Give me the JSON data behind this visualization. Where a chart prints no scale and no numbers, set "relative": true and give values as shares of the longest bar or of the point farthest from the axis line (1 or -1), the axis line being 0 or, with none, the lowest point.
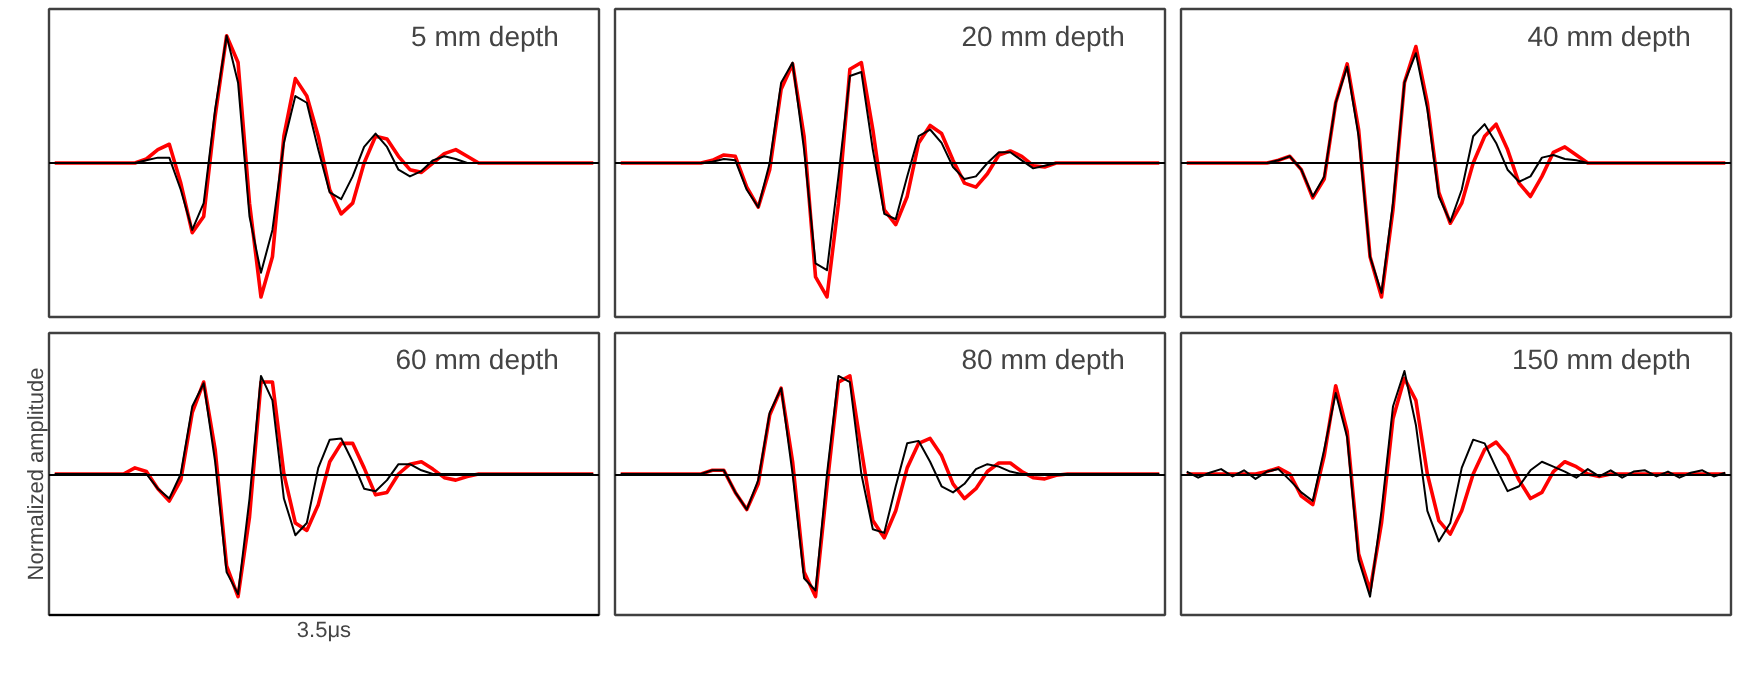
{
  "chart_data": [
    {
      "type": "line",
      "title": "5 mm depth",
      "relative": true,
      "categories": [
        null,
        null,
        null,
        null,
        null,
        null,
        null,
        null,
        null,
        null,
        null,
        null,
        null,
        null,
        null,
        null,
        null,
        null,
        null,
        null,
        null,
        null,
        null,
        null,
        null,
        null,
        null,
        null,
        null,
        null,
        null,
        null,
        null,
        null,
        null,
        null,
        null,
        null,
        null,
        null,
        null,
        null,
        null,
        null,
        null,
        null,
        null,
        null
      ],
      "series": [
        {
          "color": "#000000",
          "values": [
            0,
            0,
            0,
            0,
            0,
            0,
            0,
            0,
            0.02,
            0.04,
            0.04,
            -0.2,
            -0.5,
            -0.3,
            0.4,
            0.95,
            0.6,
            -0.4,
            -0.82,
            -0.5,
            0.15,
            0.5,
            0.45,
            0.1,
            -0.22,
            -0.27,
            -0.1,
            0.12,
            0.22,
            0.12,
            -0.05,
            -0.1,
            -0.06,
            0.02,
            0.05,
            0.03,
            0,
            0,
            0,
            0,
            0,
            0,
            0,
            0,
            0,
            0,
            0,
            0
          ]
        },
        {
          "color": "#ff0000",
          "values": [
            0,
            0,
            0,
            0,
            0,
            0,
            0,
            0,
            0.03,
            0.1,
            0.14,
            -0.15,
            -0.52,
            -0.4,
            0.35,
            0.95,
            0.75,
            -0.3,
            -1.0,
            -0.7,
            0.2,
            0.63,
            0.5,
            0.2,
            -0.2,
            -0.38,
            -0.3,
            0.0,
            0.2,
            0.18,
            0.05,
            -0.05,
            -0.07,
            0.0,
            0.07,
            0.1,
            0.05,
            0,
            0,
            0,
            0,
            0,
            0,
            0,
            0,
            0,
            0,
            0
          ]
        }
      ]
    },
    {
      "type": "line",
      "title": "20 mm depth",
      "relative": true,
      "categories": [
        null,
        null,
        null,
        null,
        null,
        null,
        null,
        null,
        null,
        null,
        null,
        null,
        null,
        null,
        null,
        null,
        null,
        null,
        null,
        null,
        null,
        null,
        null,
        null,
        null,
        null,
        null,
        null,
        null,
        null,
        null,
        null,
        null,
        null,
        null,
        null,
        null,
        null,
        null,
        null,
        null,
        null,
        null,
        null,
        null,
        null,
        null,
        null
      ],
      "series": [
        {
          "color": "#000000",
          "values": [
            0,
            0,
            0,
            0,
            0,
            0,
            0,
            0,
            0.01,
            0.03,
            0.02,
            -0.2,
            -0.33,
            0.0,
            0.6,
            0.75,
            0.1,
            -0.75,
            -0.8,
            -0.1,
            0.65,
            0.68,
            0.1,
            -0.38,
            -0.42,
            -0.1,
            0.2,
            0.25,
            0.15,
            -0.03,
            -0.12,
            -0.1,
            0.0,
            0.08,
            0.08,
            0.02,
            -0.04,
            -0.02,
            0,
            0,
            0,
            0,
            0,
            0,
            0,
            0,
            0,
            0
          ]
        },
        {
          "color": "#ff0000",
          "values": [
            0,
            0,
            0,
            0,
            0,
            0,
            0,
            0,
            0.02,
            0.06,
            0.05,
            -0.18,
            -0.33,
            -0.05,
            0.55,
            0.74,
            0.2,
            -0.85,
            -1.0,
            -0.3,
            0.7,
            0.75,
            0.25,
            -0.35,
            -0.46,
            -0.25,
            0.15,
            0.28,
            0.22,
            0.02,
            -0.15,
            -0.18,
            -0.08,
            0.06,
            0.09,
            0.05,
            -0.02,
            -0.03,
            0,
            0,
            0,
            0,
            0,
            0,
            0,
            0,
            0,
            0
          ]
        }
      ]
    },
    {
      "type": "line",
      "title": "40 mm depth",
      "relative": true,
      "categories": [
        null,
        null,
        null,
        null,
        null,
        null,
        null,
        null,
        null,
        null,
        null,
        null,
        null,
        null,
        null,
        null,
        null,
        null,
        null,
        null,
        null,
        null,
        null,
        null,
        null,
        null,
        null,
        null,
        null,
        null,
        null,
        null,
        null,
        null,
        null,
        null,
        null,
        null,
        null,
        null,
        null,
        null,
        null,
        null,
        null,
        null,
        null,
        null
      ],
      "series": [
        {
          "color": "#000000",
          "values": [
            0,
            0,
            0,
            0,
            0,
            0,
            0,
            0,
            0.02,
            0.05,
            -0.05,
            -0.25,
            -0.1,
            0.45,
            0.72,
            0.2,
            -0.7,
            -0.97,
            -0.3,
            0.6,
            0.82,
            0.4,
            -0.25,
            -0.44,
            -0.2,
            0.2,
            0.29,
            0.15,
            -0.05,
            -0.14,
            -0.1,
            0.04,
            0.06,
            0.03,
            0.02,
            0,
            0,
            0,
            0,
            0,
            0,
            0,
            0,
            0,
            0,
            0,
            0,
            0
          ]
        },
        {
          "color": "#ff0000",
          "values": [
            0,
            0,
            0,
            0,
            0,
            0,
            0,
            0,
            0.02,
            0.05,
            -0.05,
            -0.26,
            -0.12,
            0.45,
            0.74,
            0.25,
            -0.7,
            -1.0,
            -0.35,
            0.6,
            0.87,
            0.45,
            -0.22,
            -0.45,
            -0.3,
            0.0,
            0.2,
            0.29,
            0.1,
            -0.15,
            -0.25,
            -0.1,
            0.08,
            0.12,
            0.06,
            0.0,
            0,
            0,
            0,
            0,
            0,
            0,
            0,
            0,
            0,
            0,
            0,
            0
          ]
        }
      ]
    },
    {
      "type": "line",
      "title": "60 mm depth",
      "relative": true,
      "ylabel": "Normalized amplitude",
      "annotations": [
        "3.5μs"
      ],
      "categories": [
        null,
        null,
        null,
        null,
        null,
        null,
        null,
        null,
        null,
        null,
        null,
        null,
        null,
        null,
        null,
        null,
        null,
        null,
        null,
        null,
        null,
        null,
        null,
        null,
        null,
        null,
        null,
        null,
        null,
        null,
        null,
        null,
        null,
        null,
        null,
        null,
        null,
        null,
        null,
        null,
        null,
        null,
        null,
        null,
        null,
        null,
        null,
        null
      ],
      "series": [
        {
          "color": "#000000",
          "values": [
            0,
            0,
            0,
            0,
            0,
            0,
            0,
            0,
            0.0,
            -0.12,
            -0.2,
            0.0,
            0.55,
            0.74,
            0.1,
            -0.8,
            -0.98,
            -0.2,
            0.8,
            0.6,
            -0.2,
            -0.5,
            -0.4,
            0.05,
            0.28,
            0.29,
            0.1,
            -0.12,
            -0.14,
            -0.05,
            0.08,
            0.08,
            0.03,
            0.0,
            0,
            0,
            0,
            0,
            0,
            0,
            0,
            0,
            0,
            0,
            0,
            0,
            0,
            0
          ]
        },
        {
          "color": "#ff0000",
          "values": [
            0,
            0,
            0,
            0,
            0,
            0,
            0,
            0.05,
            0.02,
            -0.12,
            -0.22,
            -0.05,
            0.5,
            0.75,
            0.2,
            -0.75,
            -1.0,
            -0.35,
            0.75,
            0.75,
            0.0,
            -0.4,
            -0.46,
            -0.25,
            0.1,
            0.25,
            0.25,
            0.05,
            -0.17,
            -0.15,
            0.0,
            0.08,
            0.1,
            0.04,
            -0.03,
            -0.05,
            -0.02,
            0,
            0,
            0,
            0,
            0,
            0,
            0,
            0,
            0,
            0,
            0
          ]
        }
      ]
    },
    {
      "type": "line",
      "title": "80 mm depth",
      "relative": true,
      "categories": [
        null,
        null,
        null,
        null,
        null,
        null,
        null,
        null,
        null,
        null,
        null,
        null,
        null,
        null,
        null,
        null,
        null,
        null,
        null,
        null,
        null,
        null,
        null,
        null,
        null,
        null,
        null,
        null,
        null,
        null,
        null,
        null,
        null,
        null,
        null,
        null,
        null,
        null,
        null,
        null,
        null,
        null,
        null,
        null,
        null,
        null,
        null,
        null
      ],
      "series": [
        {
          "color": "#000000",
          "values": [
            0,
            0,
            0,
            0,
            0,
            0,
            0,
            0,
            0.03,
            0.03,
            -0.15,
            -0.29,
            -0.05,
            0.5,
            0.7,
            0.0,
            -0.85,
            -0.95,
            0.0,
            0.8,
            0.75,
            0.0,
            -0.45,
            -0.48,
            -0.1,
            0.25,
            0.27,
            0.1,
            -0.1,
            -0.15,
            -0.08,
            0.04,
            0.08,
            0.06,
            0.02,
            0,
            0,
            0,
            0,
            0,
            0,
            0,
            0,
            0,
            0,
            0,
            0,
            0
          ]
        },
        {
          "color": "#ff0000",
          "values": [
            0,
            0,
            0,
            0,
            0,
            0,
            0,
            0,
            0.03,
            0.03,
            -0.15,
            -0.29,
            -0.08,
            0.48,
            0.7,
            0.1,
            -0.8,
            -1.0,
            -0.1,
            0.75,
            0.8,
            0.2,
            -0.38,
            -0.52,
            -0.3,
            0.05,
            0.25,
            0.29,
            0.15,
            -0.08,
            -0.2,
            -0.12,
            0.02,
            0.09,
            0.09,
            0.02,
            -0.03,
            -0.04,
            -0.01,
            0,
            0,
            0,
            0,
            0,
            0,
            0,
            0,
            0
          ]
        }
      ]
    },
    {
      "type": "line",
      "title": "150 mm depth",
      "relative": true,
      "categories": [
        null,
        null,
        null,
        null,
        null,
        null,
        null,
        null,
        null,
        null,
        null,
        null,
        null,
        null,
        null,
        null,
        null,
        null,
        null,
        null,
        null,
        null,
        null,
        null,
        null,
        null,
        null,
        null,
        null,
        null,
        null,
        null,
        null,
        null,
        null,
        null,
        null,
        null,
        null,
        null,
        null,
        null,
        null,
        null,
        null,
        null,
        null,
        null
      ],
      "series": [
        {
          "color": "#000000",
          "values": [
            0.02,
            -0.03,
            0.01,
            0.04,
            -0.02,
            0.03,
            -0.04,
            0.02,
            0.04,
            -0.05,
            -0.15,
            -0.22,
            0.2,
            0.66,
            0.3,
            -0.7,
            -1.0,
            -0.3,
            0.55,
            0.84,
            0.4,
            -0.3,
            -0.55,
            -0.4,
            0.05,
            0.28,
            0.25,
            0.05,
            -0.14,
            -0.1,
            0.03,
            0.1,
            0.06,
            0.02,
            -0.03,
            0.04,
            -0.02,
            0.03,
            -0.03,
            0.02,
            0.03,
            -0.02,
            0.02,
            -0.03,
            0.01,
            0.03,
            -0.02,
            0.01
          ]
        },
        {
          "color": "#ff0000",
          "values": [
            0,
            0,
            0,
            0,
            0,
            0,
            0,
            0.02,
            0.05,
            0.0,
            -0.18,
            -0.25,
            0.15,
            0.72,
            0.35,
            -0.65,
            -0.95,
            -0.4,
            0.45,
            0.78,
            0.6,
            0.0,
            -0.38,
            -0.49,
            -0.3,
            0.0,
            0.2,
            0.26,
            0.15,
            -0.05,
            -0.2,
            -0.15,
            0.02,
            0.1,
            0.06,
            0.0,
            -0.02,
            0,
            0,
            0,
            0,
            0,
            0,
            0,
            0,
            0,
            0,
            0
          ]
        }
      ]
    }
  ]
}
